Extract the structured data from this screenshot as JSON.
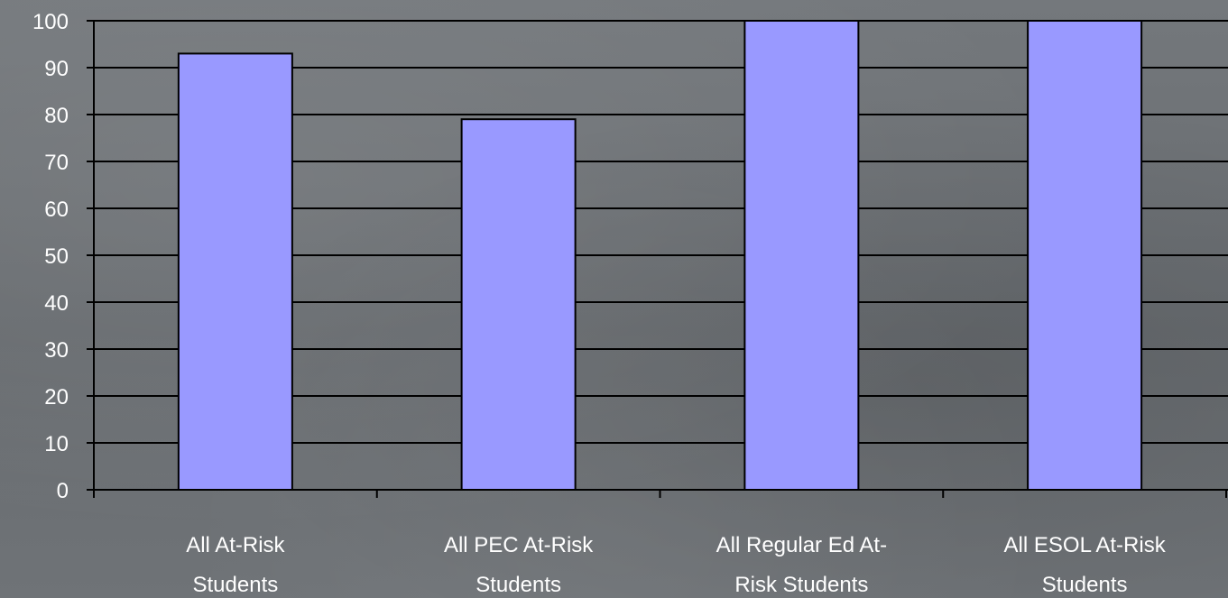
{
  "chart_data": {
    "type": "bar",
    "categories": [
      [
        "All At-Risk",
        "Students"
      ],
      [
        "All PEC At-Risk",
        "Students"
      ],
      [
        "All Regular Ed At-",
        "Risk Students"
      ],
      [
        "All ESOL At-Risk",
        "Students"
      ]
    ],
    "values": [
      93,
      79,
      100,
      100
    ],
    "ylim": [
      0,
      100
    ],
    "yticks": [
      "0",
      "10",
      "20",
      "30",
      "40",
      "50",
      "60",
      "70",
      "80",
      "90",
      "100"
    ],
    "grid": true,
    "colors": {
      "bar": "#9999ff",
      "bar_stroke": "#000000",
      "grid": "#000000",
      "text": "#ffffff"
    }
  }
}
